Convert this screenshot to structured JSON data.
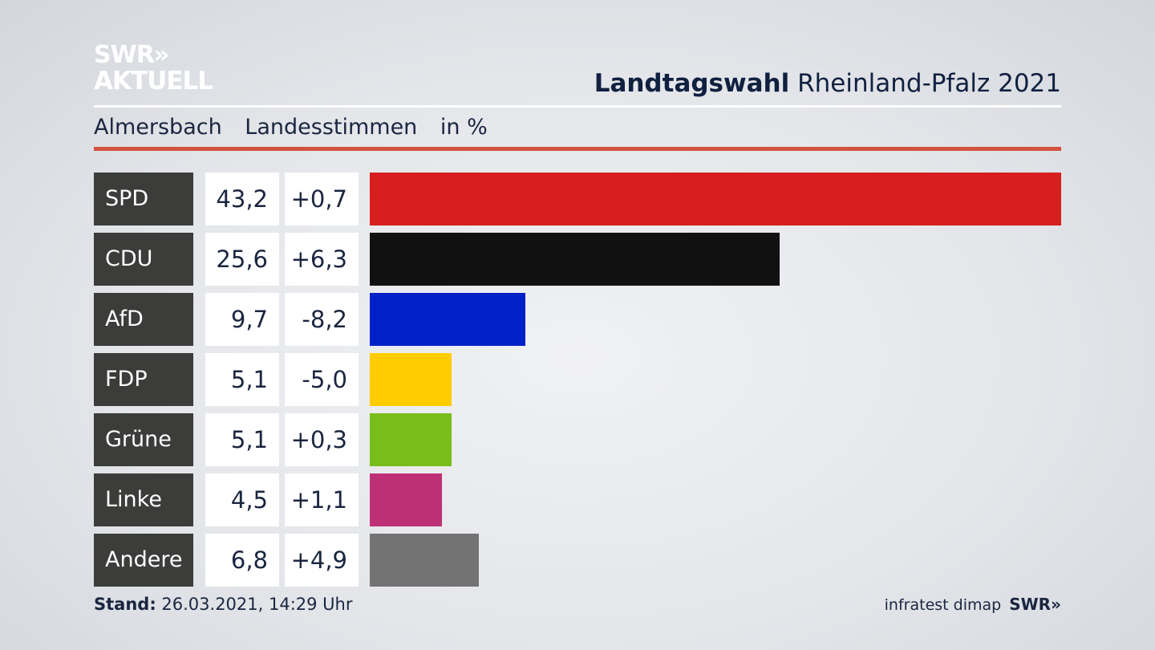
{
  "logo": {
    "line1": "SWR»",
    "line2": "AKTUELL"
  },
  "header": {
    "title_bold": "Landtagswahl",
    "title_rest": " Rheinland-Pfalz 2021"
  },
  "subheader": {
    "place": "Almersbach",
    "measure": "Landesstimmen",
    "unit": "in %"
  },
  "chart_data": {
    "type": "bar",
    "orientation": "horizontal",
    "categories": [
      "SPD",
      "CDU",
      "AfD",
      "FDP",
      "Grüne",
      "Linke",
      "Andere"
    ],
    "values": [
      43.2,
      25.6,
      9.7,
      5.1,
      5.1,
      4.5,
      6.8
    ],
    "value_labels": [
      "43,2",
      "25,6",
      "9,7",
      "5,1",
      "5,1",
      "4,5",
      "6,8"
    ],
    "changes": [
      0.7,
      6.3,
      -8.2,
      -5.0,
      0.3,
      1.1,
      4.9
    ],
    "change_labels": [
      "+0,7",
      "+6,3",
      "-8,2",
      "-5,0",
      "+0,3",
      "+1,1",
      "+4,9"
    ],
    "colors": [
      "#d71f1f",
      "#111111",
      "#0021c8",
      "#ffcc00",
      "#79bd1b",
      "#bd3075",
      "#737373"
    ],
    "title": "Landtagswahl Rheinland-Pfalz 2021",
    "xlim": [
      0,
      43.2
    ],
    "grid": false
  },
  "footer": {
    "stand_label": "Stand:",
    "stand_value": " 26.03.2021, 14:29 Uhr",
    "source": "infratest dimap",
    "brand": "SWR»"
  }
}
